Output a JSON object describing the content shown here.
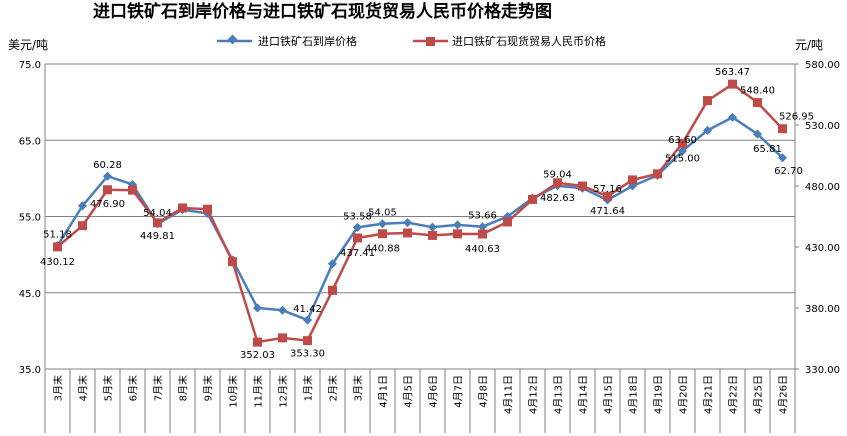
{
  "chart_data": {
    "type": "line",
    "title": "进口铁矿石到岸价格与进口铁矿石现货贸易人民币价格走势图",
    "left_axis_unit": "美元/吨",
    "right_axis_unit": "元/吨",
    "ylim_left": [
      35,
      75
    ],
    "ylim_right": [
      330,
      580
    ],
    "yticks_left": [
      "35.0",
      "45.0",
      "55.0",
      "65.0",
      "75.0"
    ],
    "yticks_right": [
      "330.00",
      "380.00",
      "430.00",
      "480.00",
      "530.00",
      "580.00"
    ],
    "grid": "horizontal",
    "legend_position": "top",
    "categories": [
      "3月末",
      "4月末",
      "5月末",
      "6月末",
      "7月末",
      "8月末",
      "9月末",
      "10月末",
      "11月末",
      "12月末",
      "1月末",
      "2月末",
      "3月末",
      "4月1日",
      "4月5日",
      "4月6日",
      "4月7日",
      "4月8日",
      "4月11日",
      "4月12日",
      "4月13日",
      "4月14日",
      "4月15日",
      "4月18日",
      "4月19日",
      "4月20日",
      "4月21日",
      "4月22日",
      "4月25日",
      "4月26日"
    ],
    "series": [
      {
        "name": "进口铁矿石到岸价格",
        "axis": "left",
        "color": "#4a7ebb",
        "values": [
          51.18,
          56.4,
          60.28,
          59.2,
          54.04,
          55.9,
          55.4,
          49.3,
          43.0,
          42.7,
          41.42,
          48.8,
          53.58,
          54.05,
          54.2,
          53.6,
          53.9,
          53.66,
          55.0,
          57.4,
          59.04,
          58.7,
          57.16,
          59.0,
          60.4,
          63.6,
          66.3,
          68.0,
          65.81,
          62.7
        ],
        "labels": [
          "51.18",
          "",
          "60.28",
          "",
          "54.04",
          "",
          "",
          "",
          "",
          "",
          "41.42",
          "",
          "53.58",
          "54.05",
          "",
          "",
          "",
          "53.66",
          "",
          "",
          "59.04",
          "",
          "57.16",
          "",
          "",
          "63.60",
          "",
          "",
          "65.81",
          "62.70"
        ]
      },
      {
        "name": "进口铁矿石现货贸易人民币价格",
        "axis": "right",
        "color": "#be4b48",
        "values": [
          430.12,
          447.5,
          476.9,
          476.6,
          449.81,
          462.0,
          461.0,
          418.0,
          352.03,
          355.5,
          353.3,
          394.5,
          437.41,
          440.88,
          441.5,
          439.5,
          440.8,
          440.63,
          450.5,
          469.0,
          482.63,
          480.0,
          471.64,
          485.0,
          490.0,
          515.0,
          550.0,
          563.47,
          548.4,
          526.95
        ],
        "labels": [
          "430.12",
          "",
          "476.90",
          "",
          "449.81",
          "",
          "",
          "",
          "352.03",
          "",
          "353.30",
          "",
          "437.41",
          "440.88",
          "",
          "",
          "",
          "440.63",
          "",
          "",
          "482.63",
          "",
          "471.64",
          "",
          "",
          "515.00",
          "",
          "563.47",
          "548.40",
          "526.95"
        ]
      }
    ]
  }
}
